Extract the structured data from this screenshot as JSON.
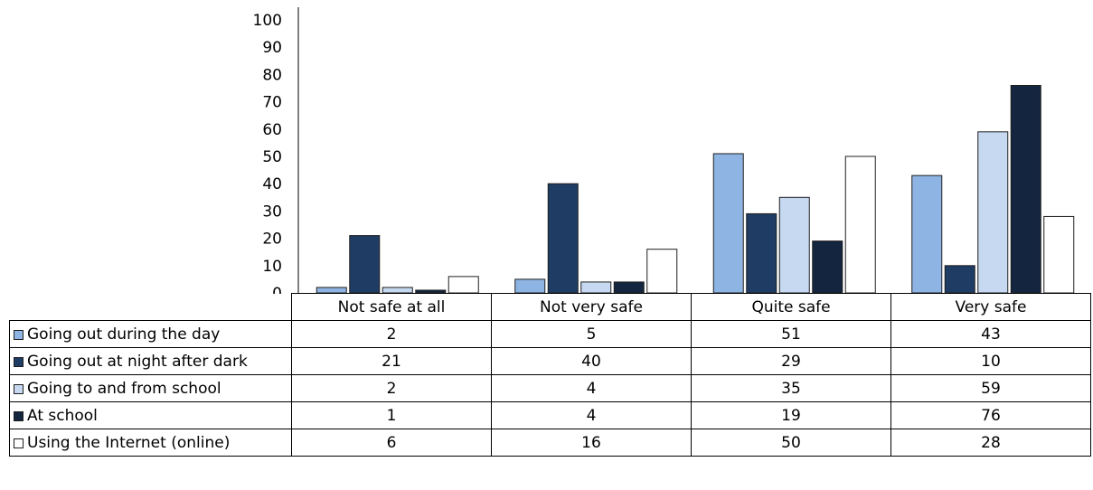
{
  "chart_data": {
    "type": "bar",
    "categories": [
      "Not safe at all",
      "Not very safe",
      "Quite safe",
      "Very safe"
    ],
    "ylim": [
      0,
      100
    ],
    "yticks": [
      0,
      10,
      20,
      30,
      40,
      50,
      60,
      70,
      80,
      90,
      100
    ],
    "grid": false,
    "legend": "data table below chart",
    "series": [
      {
        "name": "Going out during the day",
        "color": "#8eb4e3",
        "values": [
          2,
          5,
          51,
          43
        ]
      },
      {
        "name": "Going out at night after dark",
        "color": "#1f3c64",
        "values": [
          21,
          40,
          29,
          10
        ]
      },
      {
        "name": "Going to and from school",
        "color": "#c6d9f1",
        "values": [
          2,
          4,
          35,
          59
        ]
      },
      {
        "name": "At school",
        "color": "#13253f",
        "values": [
          1,
          4,
          19,
          76
        ]
      },
      {
        "name": "Using the Internet (online)",
        "color": "#ffffff",
        "values": [
          6,
          16,
          50,
          28
        ]
      }
    ]
  }
}
